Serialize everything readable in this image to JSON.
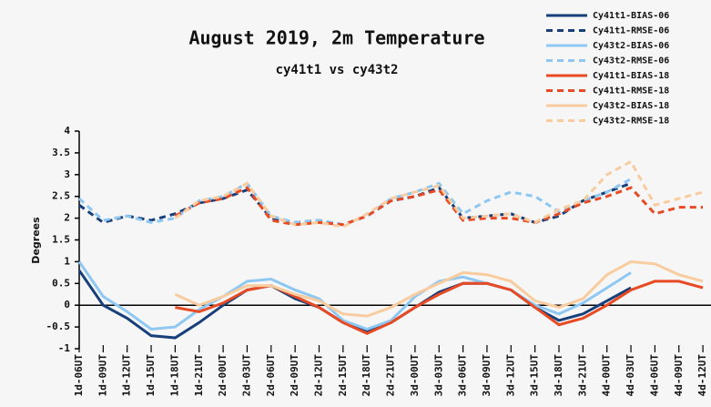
{
  "chart_data": {
    "type": "line",
    "title": "August 2019, 2m Temperature",
    "subtitle": "cy41t1 vs cy43t2",
    "y_label": "Degrees",
    "categories": [
      "1d-06UT",
      "1d-09UT",
      "1d-12UT",
      "1d-15UT",
      "1d-18UT",
      "1d-21UT",
      "2d-00UT",
      "2d-03UT",
      "2d-06UT",
      "2d-09UT",
      "2d-12UT",
      "2d-15UT",
      "2d-18UT",
      "2d-21UT",
      "3d-00UT",
      "3d-03UT",
      "3d-06UT",
      "3d-09UT",
      "3d-12UT",
      "3d-15UT",
      "3d-18UT",
      "3d-21UT",
      "4d-00UT",
      "4d-03UT",
      "4d-06UT",
      "4d-09UT",
      "4d-12UT"
    ],
    "ylim": [
      -1,
      4
    ],
    "yticks": [
      4,
      3.5,
      3,
      2.5,
      2,
      1.5,
      1,
      0.5,
      0,
      -0.5,
      -1
    ],
    "legend": "top-right",
    "series": [
      {
        "name": "Cy41t1-BIAS-06",
        "color": "#173f7a",
        "dashed": false,
        "values": [
          0.8,
          0,
          -0.3,
          -0.7,
          -0.75,
          -0.4,
          0,
          0.35,
          0.45,
          0.15,
          -0.05,
          -0.4,
          -0.6,
          -0.4,
          -0.05,
          0.3,
          0.5,
          0.5,
          0.35,
          -0.05,
          -0.35,
          -0.2,
          0.1,
          0.4,
          null,
          null,
          null
        ]
      },
      {
        "name": "Cy41t1-RMSE-06",
        "color": "#173f7a",
        "dashed": true,
        "values": [
          2.3,
          1.9,
          2.05,
          1.95,
          2.1,
          2.35,
          2.45,
          2.65,
          2.0,
          1.9,
          1.95,
          1.85,
          2.05,
          2.4,
          2.5,
          2.7,
          2.0,
          2.05,
          2.1,
          1.9,
          2.05,
          2.4,
          2.6,
          2.8,
          null,
          null,
          null
        ]
      },
      {
        "name": "Cy43t2-BIAS-06",
        "color": "#8ec8f2",
        "dashed": false,
        "values": [
          1.0,
          0.2,
          -0.15,
          -0.55,
          -0.5,
          -0.1,
          0.2,
          0.55,
          0.6,
          0.35,
          0.15,
          -0.35,
          -0.55,
          -0.35,
          0.2,
          0.55,
          0.65,
          0.5,
          0.35,
          0,
          -0.2,
          0.05,
          0.4,
          0.75,
          null,
          null,
          null
        ]
      },
      {
        "name": "Cy43t2-RMSE-06",
        "color": "#8ec8f2",
        "dashed": true,
        "values": [
          2.45,
          1.95,
          2.05,
          1.9,
          2.0,
          2.4,
          2.5,
          2.8,
          2.05,
          1.9,
          1.95,
          1.85,
          2.05,
          2.45,
          2.6,
          2.8,
          2.1,
          2.4,
          2.6,
          2.5,
          2.15,
          2.4,
          2.6,
          2.9,
          null,
          null,
          null
        ]
      },
      {
        "name": "Cy41t1-BIAS-18",
        "color": "#e84a24",
        "dashed": false,
        "values": [
          null,
          null,
          null,
          null,
          -0.05,
          -0.15,
          0.05,
          0.35,
          0.45,
          0.2,
          -0.05,
          -0.4,
          -0.65,
          -0.4,
          -0.05,
          0.25,
          0.5,
          0.5,
          0.35,
          -0.05,
          -0.45,
          -0.3,
          0,
          0.35,
          0.55,
          0.55,
          0.4
        ]
      },
      {
        "name": "Cy41t1-RMSE-18",
        "color": "#e84a24",
        "dashed": true,
        "values": [
          null,
          null,
          null,
          null,
          2.05,
          2.35,
          2.45,
          2.7,
          1.95,
          1.85,
          1.9,
          1.85,
          2.05,
          2.4,
          2.5,
          2.65,
          1.95,
          2.0,
          2.0,
          1.9,
          2.1,
          2.35,
          2.5,
          2.7,
          2.1,
          2.25,
          2.25
        ]
      },
      {
        "name": "Cy43t2-BIAS-18",
        "color": "#f8cc9e",
        "dashed": false,
        "values": [
          null,
          null,
          null,
          null,
          0.25,
          0,
          0.2,
          0.45,
          0.45,
          0.25,
          0.1,
          -0.2,
          -0.25,
          -0.05,
          0.25,
          0.5,
          0.75,
          0.7,
          0.55,
          0.1,
          -0.05,
          0.15,
          0.7,
          1.0,
          0.95,
          0.7,
          0.55
        ]
      },
      {
        "name": "Cy43t2-RMSE-18",
        "color": "#f8cc9e",
        "dashed": true,
        "values": [
          null,
          null,
          null,
          null,
          2.0,
          2.4,
          2.5,
          2.8,
          2.05,
          1.85,
          1.9,
          1.8,
          2.1,
          2.45,
          2.6,
          2.75,
          2.0,
          2.05,
          2.1,
          1.9,
          2.2,
          2.4,
          3.0,
          3.3,
          2.3,
          2.45,
          2.6
        ]
      }
    ]
  }
}
